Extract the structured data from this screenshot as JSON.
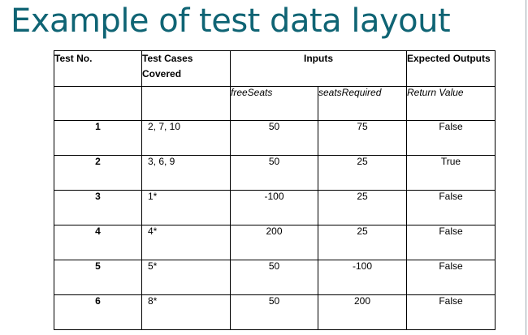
{
  "title": "Example of test data layout",
  "table": {
    "headers": {
      "test_no": "Test No.",
      "test_cases": "Test Cases Covered",
      "inputs": "Inputs",
      "expected": "Expected Outputs"
    },
    "subheaders": {
      "free_seats": "freeSeats",
      "seats_required": "seatsRequired",
      "return_value": "Return Value"
    },
    "rows": [
      {
        "test_no": "1",
        "cases": "2, 7, 10",
        "free_seats": "50",
        "seats_required": "75",
        "return_value": "False"
      },
      {
        "test_no": "2",
        "cases": "3, 6, 9",
        "free_seats": "50",
        "seats_required": "25",
        "return_value": "True"
      },
      {
        "test_no": "3",
        "cases": "1*",
        "free_seats": "-100",
        "seats_required": "25",
        "return_value": "False"
      },
      {
        "test_no": "4",
        "cases": "4*",
        "free_seats": "200",
        "seats_required": "25",
        "return_value": "False"
      },
      {
        "test_no": "5",
        "cases": "5*",
        "free_seats": "50",
        "seats_required": "-100",
        "return_value": "False"
      },
      {
        "test_no": "6",
        "cases": "8*",
        "free_seats": "50",
        "seats_required": "200",
        "return_value": "False"
      }
    ]
  }
}
